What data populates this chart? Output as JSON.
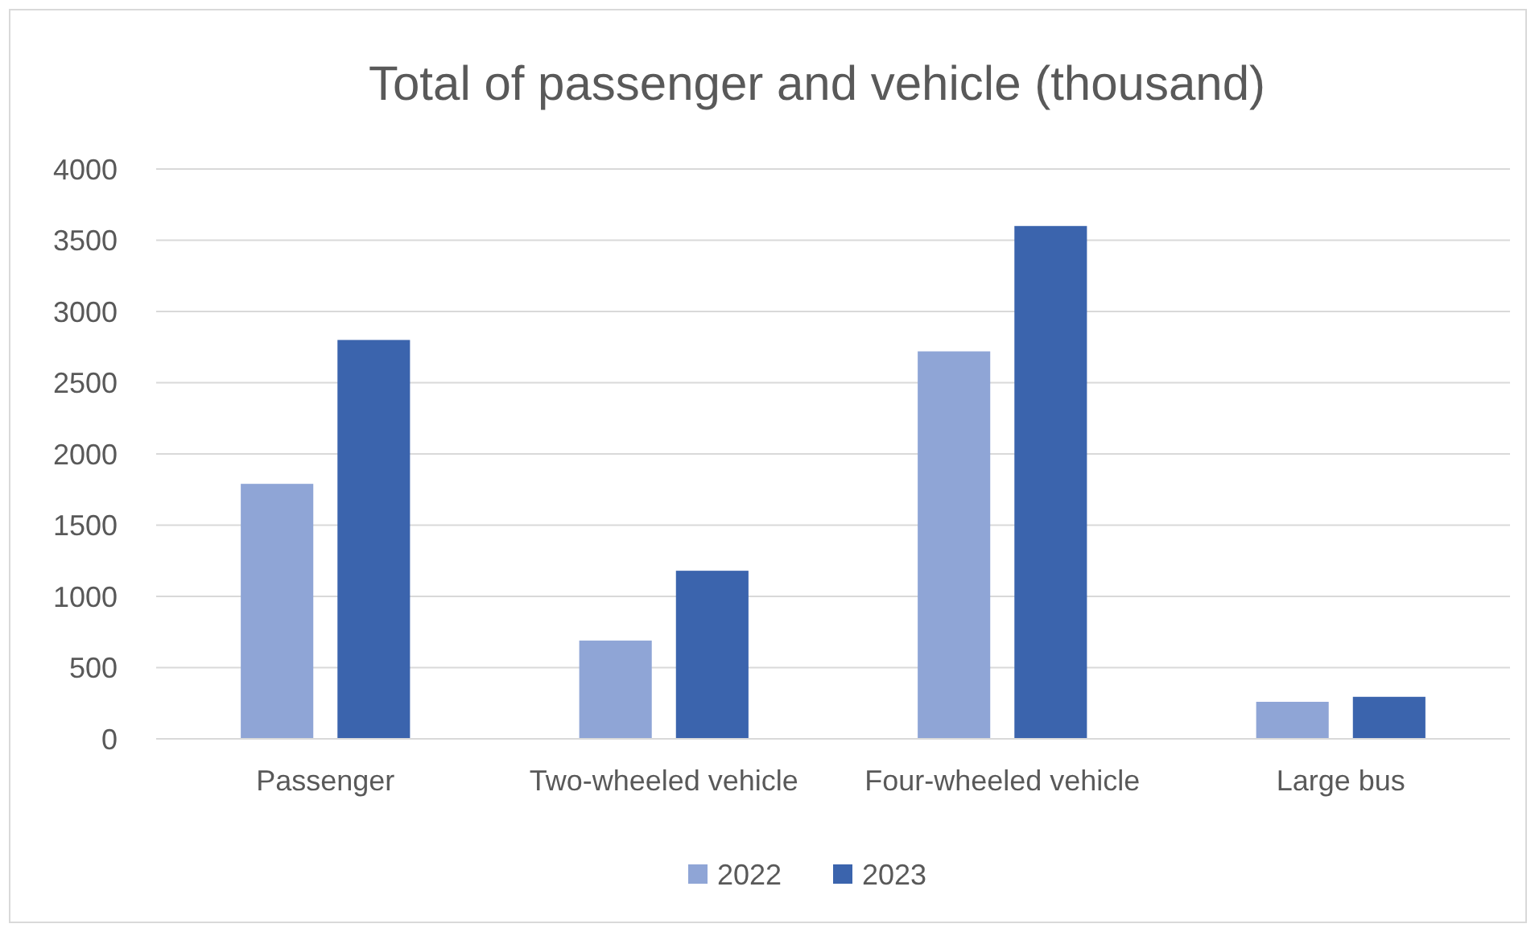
{
  "chart_data": {
    "type": "bar",
    "title": "Total of passenger and vehicle (thousand)",
    "categories": [
      "Passenger",
      "Two-wheeled vehicle",
      "Four-wheeled vehicle",
      "Large bus"
    ],
    "series": [
      {
        "name": "2022",
        "color": "#8fa5d6",
        "values": [
          1790,
          690,
          2720,
          260
        ]
      },
      {
        "name": "2023",
        "color": "#3b64ad",
        "values": [
          2800,
          1180,
          3600,
          295
        ]
      }
    ],
    "ylim": [
      0,
      4000
    ],
    "yticks": [
      0,
      500,
      1000,
      1500,
      2000,
      2500,
      3000,
      3500,
      4000
    ],
    "grid": "y",
    "legend": "bottom"
  }
}
